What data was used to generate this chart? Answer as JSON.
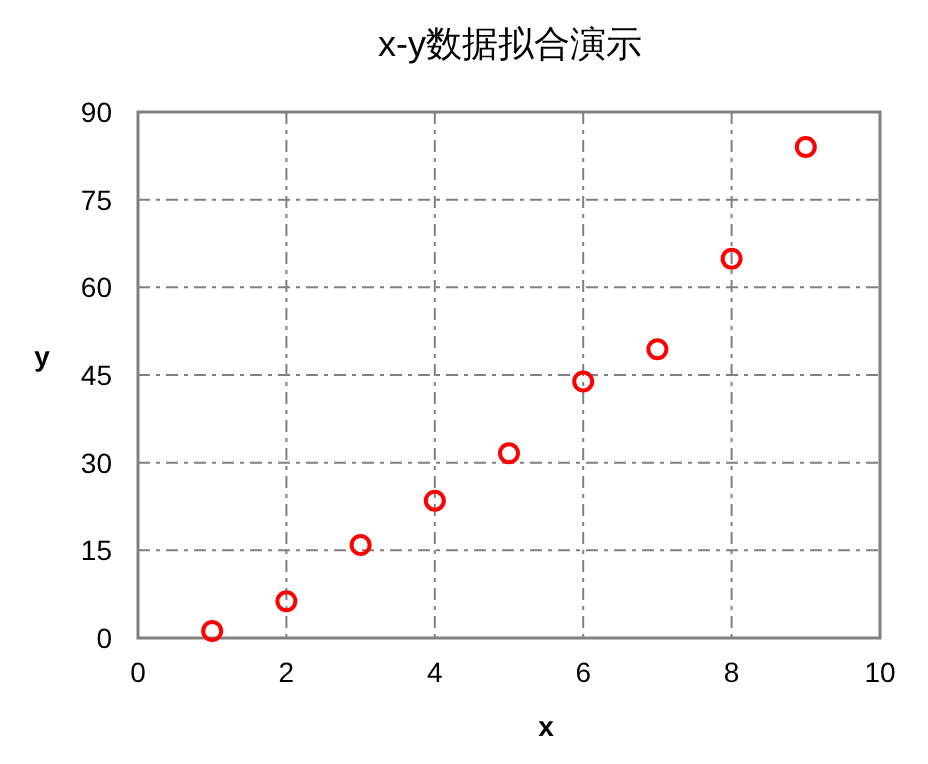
{
  "chart_data": {
    "type": "scatter",
    "title": "x-y数据拟合演示",
    "xlabel": "x",
    "ylabel": "y",
    "x": [
      1,
      2,
      3,
      4,
      5,
      6,
      7,
      8,
      9
    ],
    "series": [
      {
        "color": "#ff0000",
        "values": [
          1.2,
          6.3,
          15.9,
          23.5,
          31.6,
          43.9,
          49.4,
          64.9,
          84.0
        ]
      }
    ],
    "xlim": [
      0,
      10
    ],
    "ylim": [
      0,
      90
    ],
    "xticks": [
      0,
      2,
      4,
      6,
      8,
      10
    ],
    "yticks": [
      0,
      15,
      30,
      45,
      60,
      75,
      90
    ],
    "grid": true,
    "marker": "circle"
  }
}
